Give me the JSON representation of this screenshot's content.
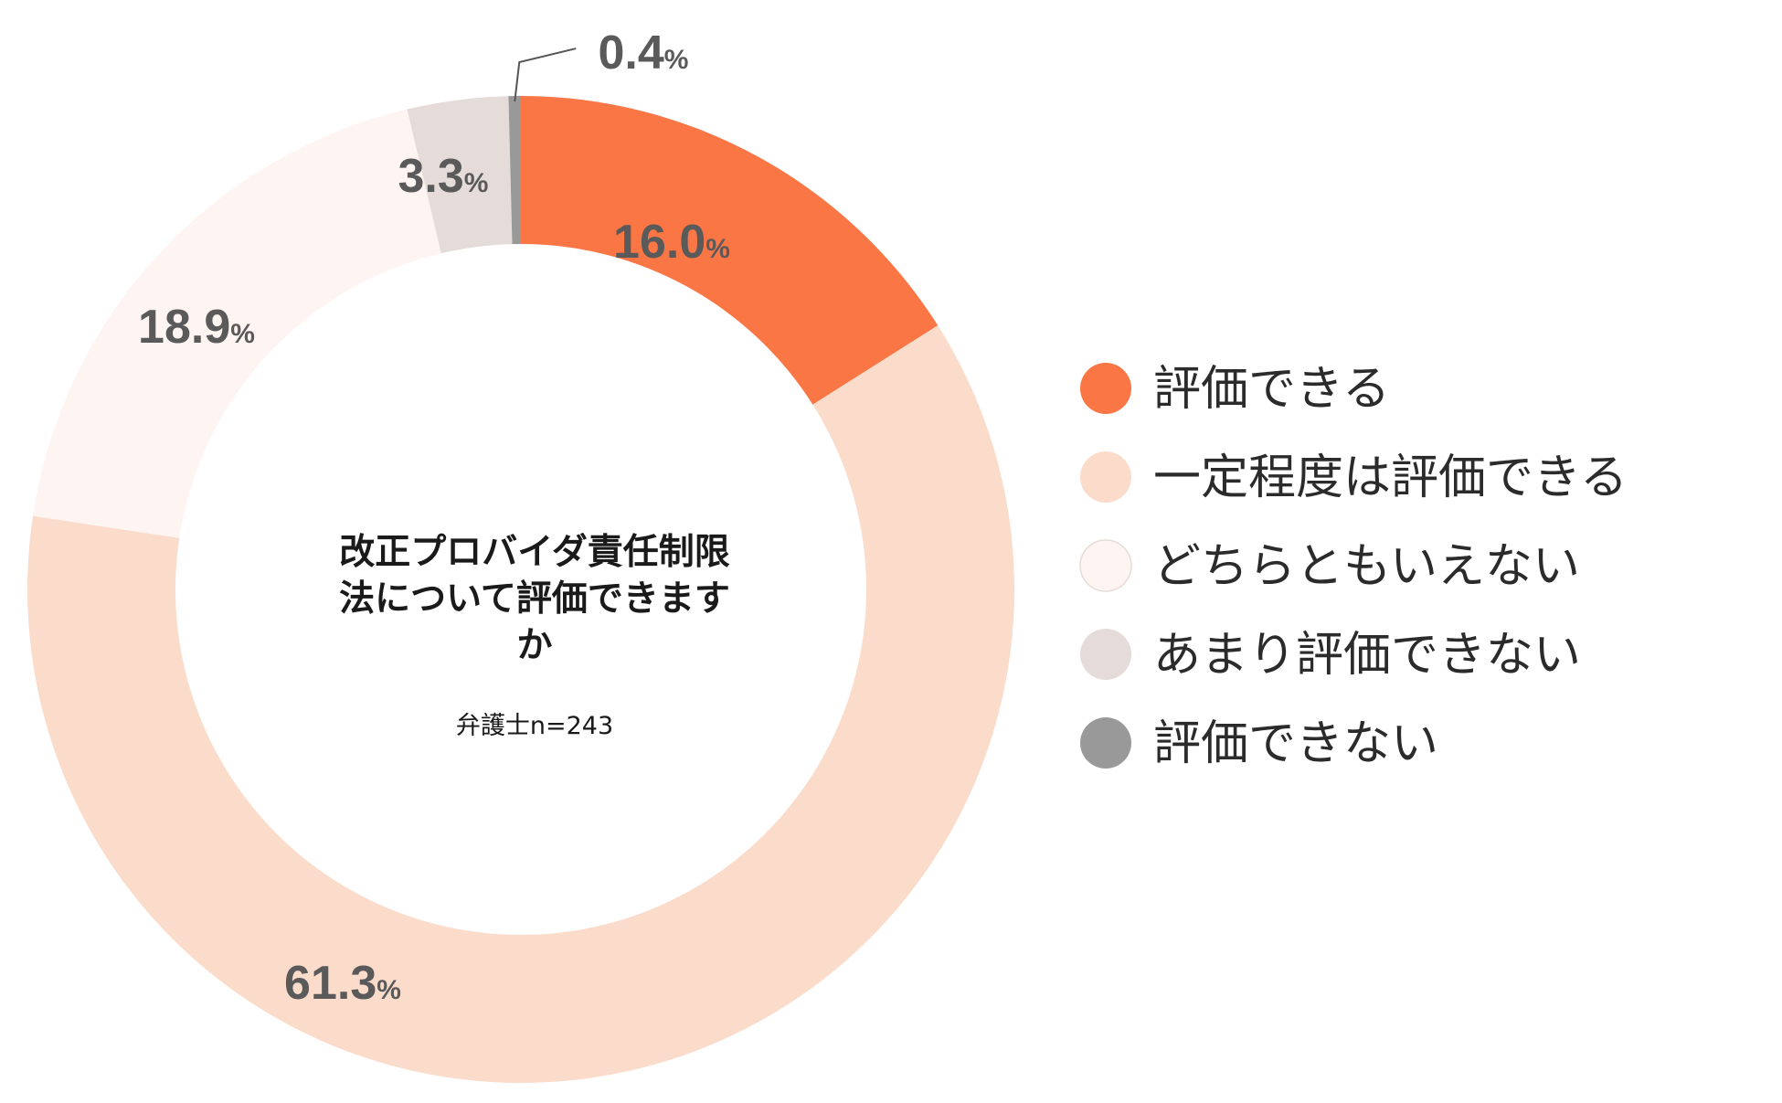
{
  "chart_data": {
    "type": "pie",
    "style": "donut",
    "title": "改正プロバイダ責任制限法について評価できますか",
    "title_lines": [
      "改正プロバイダ責任制限",
      "法について評価できます",
      "か"
    ],
    "subtitle": "弁護士n=243",
    "unit": "%",
    "slices": [
      {
        "label": "評価できる",
        "value": 16.0,
        "display": "16.0",
        "color": "#fb7645"
      },
      {
        "label": "一定程度は評価できる",
        "value": 61.3,
        "display": "61.3",
        "color": "#fbdbca"
      },
      {
        "label": "どちらともいえない",
        "value": 18.9,
        "display": "18.9",
        "color": "#fef4f1"
      },
      {
        "label": "あまり評価できない",
        "value": 3.3,
        "display": "3.3",
        "color": "#e5dcda"
      },
      {
        "label": "評価できない",
        "value": 0.4,
        "display": "0.4",
        "color": "#999999"
      }
    ],
    "start": "top",
    "direction": "clockwise",
    "legend_position": "right"
  }
}
